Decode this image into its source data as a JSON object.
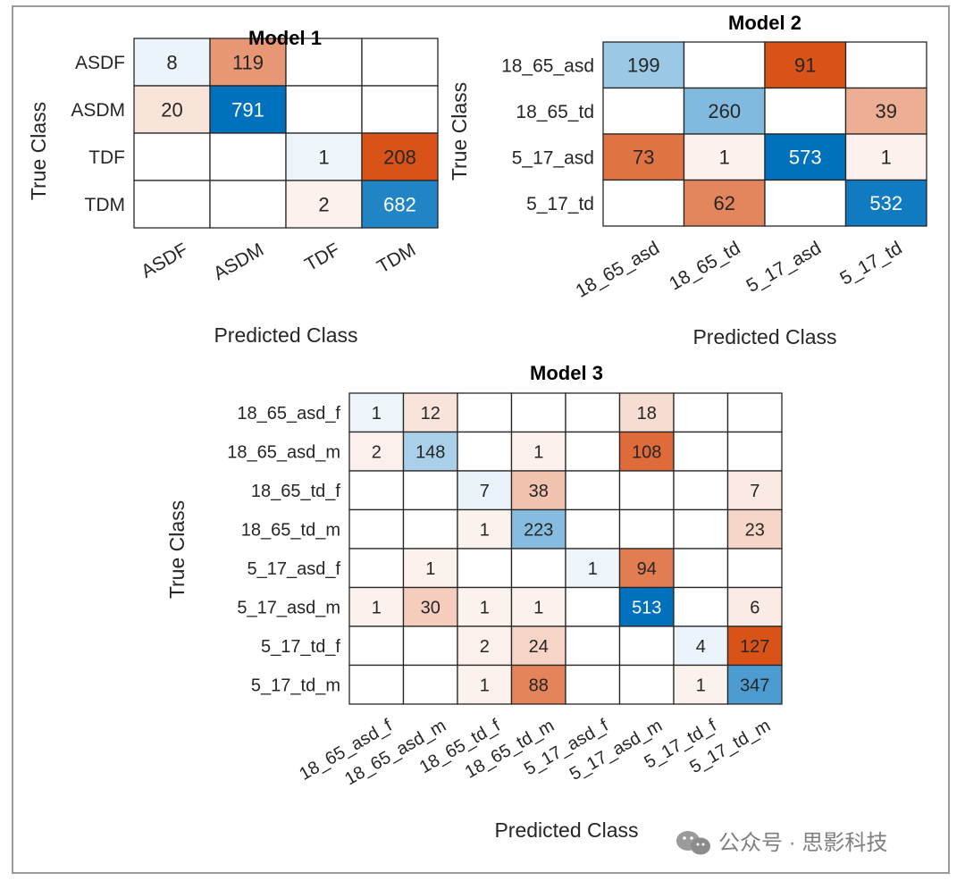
{
  "chart_data": [
    {
      "type": "heatmap",
      "title": "Model 1",
      "xlabel": "Predicted Class",
      "ylabel": "True Class",
      "rows": [
        "ASDF",
        "ASDM",
        "TDF",
        "TDM"
      ],
      "cols": [
        "ASDF",
        "ASDM",
        "TDF",
        "TDM"
      ],
      "values": [
        [
          8,
          119,
          null,
          null
        ],
        [
          20,
          791,
          null,
          null
        ],
        [
          null,
          null,
          1,
          208
        ],
        [
          null,
          null,
          2,
          682
        ]
      ]
    },
    {
      "type": "heatmap",
      "title": "Model 2",
      "xlabel": "Predicted Class",
      "ylabel": "True Class",
      "rows": [
        "18_65_asd",
        "18_65_td",
        "5_17_asd",
        "5_17_td"
      ],
      "cols": [
        "18_65_asd",
        "18_65_td",
        "5_17_asd",
        "5_17_td"
      ],
      "values": [
        [
          199,
          null,
          91,
          null
        ],
        [
          null,
          260,
          null,
          39
        ],
        [
          73,
          1,
          573,
          1
        ],
        [
          null,
          62,
          null,
          532
        ]
      ]
    },
    {
      "type": "heatmap",
      "title": "Model 3",
      "xlabel": "Predicted Class",
      "ylabel": "True Class",
      "rows": [
        "18_65_asd_f",
        "18_65_asd_m",
        "18_65_td_f",
        "18_65_td_m",
        "5_17_asd_f",
        "5_17_asd_m",
        "5_17_td_f",
        "5_17_td_m"
      ],
      "cols": [
        "18_65_asd_f",
        "18_65_asd_m",
        "18_65_td_f",
        "18_65_td_m",
        "5_17_asd_f",
        "5_17_asd_m",
        "5_17_td_f",
        "5_17_td_m"
      ],
      "values": [
        [
          1,
          12,
          null,
          null,
          null,
          18,
          null,
          null
        ],
        [
          2,
          148,
          null,
          1,
          null,
          108,
          null,
          null
        ],
        [
          null,
          null,
          7,
          38,
          null,
          null,
          null,
          7
        ],
        [
          null,
          null,
          1,
          223,
          null,
          null,
          null,
          23
        ],
        [
          null,
          1,
          null,
          null,
          1,
          94,
          null,
          null
        ],
        [
          1,
          30,
          1,
          1,
          null,
          513,
          null,
          6
        ],
        [
          null,
          null,
          2,
          24,
          null,
          null,
          4,
          127
        ],
        [
          null,
          null,
          1,
          88,
          null,
          null,
          1,
          347
        ]
      ]
    }
  ],
  "colors": {
    "diag_max": "#0072bd",
    "off_max": "#d95319",
    "text_dark": "#262626",
    "text_light": "#ffffff"
  },
  "watermark": {
    "text": "公众号 · 思影科技"
  }
}
